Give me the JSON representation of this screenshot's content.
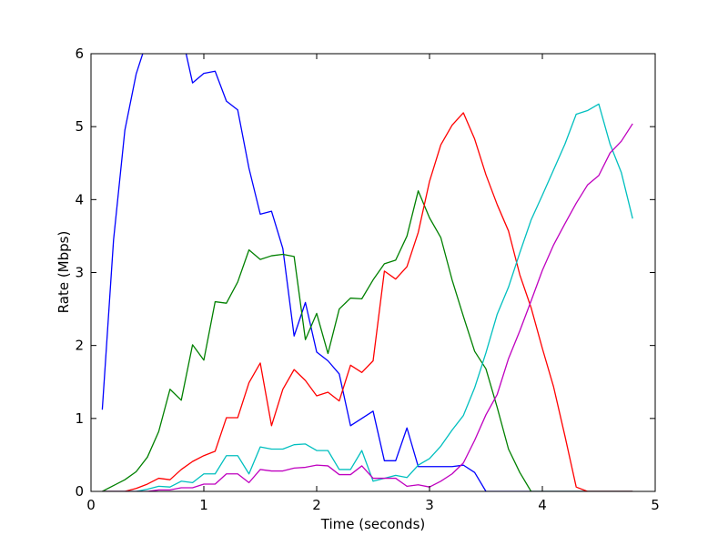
{
  "chart_data": {
    "type": "line",
    "title": "",
    "xlabel": "Time (seconds)",
    "ylabel": "Rate (Mbps)",
    "xlim": [
      0,
      5
    ],
    "ylim": [
      0,
      6
    ],
    "xticks": [
      0,
      1,
      2,
      3,
      4,
      5
    ],
    "yticks": [
      0,
      1,
      2,
      3,
      4,
      5,
      6
    ],
    "grid": false,
    "legend": "none",
    "x": [
      0.1,
      0.2,
      0.3,
      0.4,
      0.5,
      0.6,
      0.7,
      0.8,
      0.9,
      1.0,
      1.1,
      1.2,
      1.3,
      1.4,
      1.5,
      1.6,
      1.7,
      1.8,
      1.9,
      2.0,
      2.1,
      2.2,
      2.3,
      2.4,
      2.5,
      2.6,
      2.7,
      2.8,
      2.9,
      3.0,
      3.1,
      3.2,
      3.3,
      3.4,
      3.5,
      3.6,
      3.7,
      3.8,
      3.9,
      4.0,
      4.1,
      4.2,
      4.3,
      4.4,
      4.5,
      4.6,
      4.7,
      4.8
    ],
    "series": [
      {
        "color": "#0000ff",
        "values": [
          1.12,
          3.45,
          4.95,
          5.72,
          6.2,
          6.5,
          6.6,
          6.3,
          5.6,
          5.73,
          5.76,
          5.35,
          5.23,
          4.43,
          3.8,
          3.84,
          3.33,
          2.13,
          2.59,
          1.91,
          1.79,
          1.61,
          0.9,
          1.0,
          1.1,
          0.42,
          0.42,
          0.87,
          0.34,
          0.34,
          0.34,
          0.34,
          0.36,
          0.26,
          0.0,
          0.0,
          0.0,
          0.0,
          0.0,
          0.0,
          0.0,
          0.0,
          0.0,
          0.0,
          0.0,
          0.0,
          0.0,
          0.0
        ]
      },
      {
        "color": "#008000",
        "values": [
          0.0,
          0.08,
          0.16,
          0.27,
          0.47,
          0.82,
          1.4,
          1.25,
          2.01,
          1.8,
          2.6,
          2.58,
          2.87,
          3.31,
          3.18,
          3.23,
          3.25,
          3.22,
          2.08,
          2.44,
          1.89,
          2.5,
          2.65,
          2.64,
          2.9,
          3.12,
          3.17,
          3.5,
          4.12,
          3.75,
          3.48,
          2.9,
          2.4,
          1.92,
          1.68,
          1.15,
          0.58,
          0.26,
          0.0,
          0.0,
          0.0,
          0.0,
          0.0,
          0.0,
          0.0,
          0.0,
          0.0,
          0.0
        ]
      },
      {
        "color": "#ff0000",
        "values": [
          0.0,
          0.0,
          0.0,
          0.04,
          0.1,
          0.18,
          0.16,
          0.3,
          0.41,
          0.49,
          0.55,
          1.01,
          1.01,
          1.49,
          1.76,
          0.9,
          1.4,
          1.67,
          1.52,
          1.31,
          1.36,
          1.24,
          1.73,
          1.63,
          1.79,
          3.02,
          2.91,
          3.08,
          3.55,
          4.25,
          4.75,
          5.02,
          5.19,
          4.83,
          4.34,
          3.93,
          3.57,
          2.97,
          2.52,
          1.96,
          1.43,
          0.76,
          0.06,
          0.0,
          0.0,
          0.0,
          0.0,
          0.0
        ]
      },
      {
        "color": "#00bfbf",
        "values": [
          0.0,
          0.0,
          0.0,
          0.0,
          0.03,
          0.07,
          0.06,
          0.14,
          0.12,
          0.24,
          0.24,
          0.49,
          0.49,
          0.24,
          0.61,
          0.58,
          0.58,
          0.64,
          0.65,
          0.56,
          0.56,
          0.3,
          0.3,
          0.56,
          0.14,
          0.18,
          0.22,
          0.19,
          0.36,
          0.45,
          0.62,
          0.84,
          1.04,
          1.42,
          1.9,
          2.43,
          2.8,
          3.27,
          3.72,
          4.06,
          4.41,
          4.76,
          5.17,
          5.22,
          5.31,
          4.76,
          4.37,
          3.74
        ]
      },
      {
        "color": "#bf00bf",
        "values": [
          0.0,
          0.0,
          0.0,
          0.0,
          0.0,
          0.02,
          0.02,
          0.05,
          0.05,
          0.1,
          0.1,
          0.24,
          0.24,
          0.12,
          0.3,
          0.28,
          0.28,
          0.32,
          0.33,
          0.36,
          0.35,
          0.23,
          0.23,
          0.35,
          0.18,
          0.18,
          0.18,
          0.07,
          0.09,
          0.06,
          0.14,
          0.24,
          0.39,
          0.7,
          1.05,
          1.33,
          1.82,
          2.2,
          2.61,
          3.03,
          3.38,
          3.67,
          3.95,
          4.2,
          4.33,
          4.64,
          4.8,
          5.04
        ]
      }
    ]
  }
}
